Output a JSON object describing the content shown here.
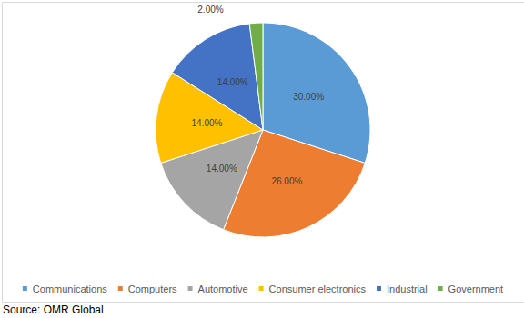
{
  "chart_data": {
    "type": "pie",
    "categories": [
      "Communications",
      "Computers",
      "Automotive",
      "Consumer electronics",
      "Industrial",
      "Government"
    ],
    "values": [
      30,
      26,
      14,
      14,
      14,
      2
    ],
    "value_labels": [
      "30.00%",
      "26.00%",
      "14.00%",
      "14.00%",
      "14.00%",
      "2.00%"
    ],
    "colors": [
      "#5b9bd5",
      "#ed7d31",
      "#a5a5a5",
      "#ffc000",
      "#4472c4",
      "#70ad47"
    ],
    "data_labels": true,
    "legend": "bottom",
    "source": "Source: OMR Global"
  }
}
